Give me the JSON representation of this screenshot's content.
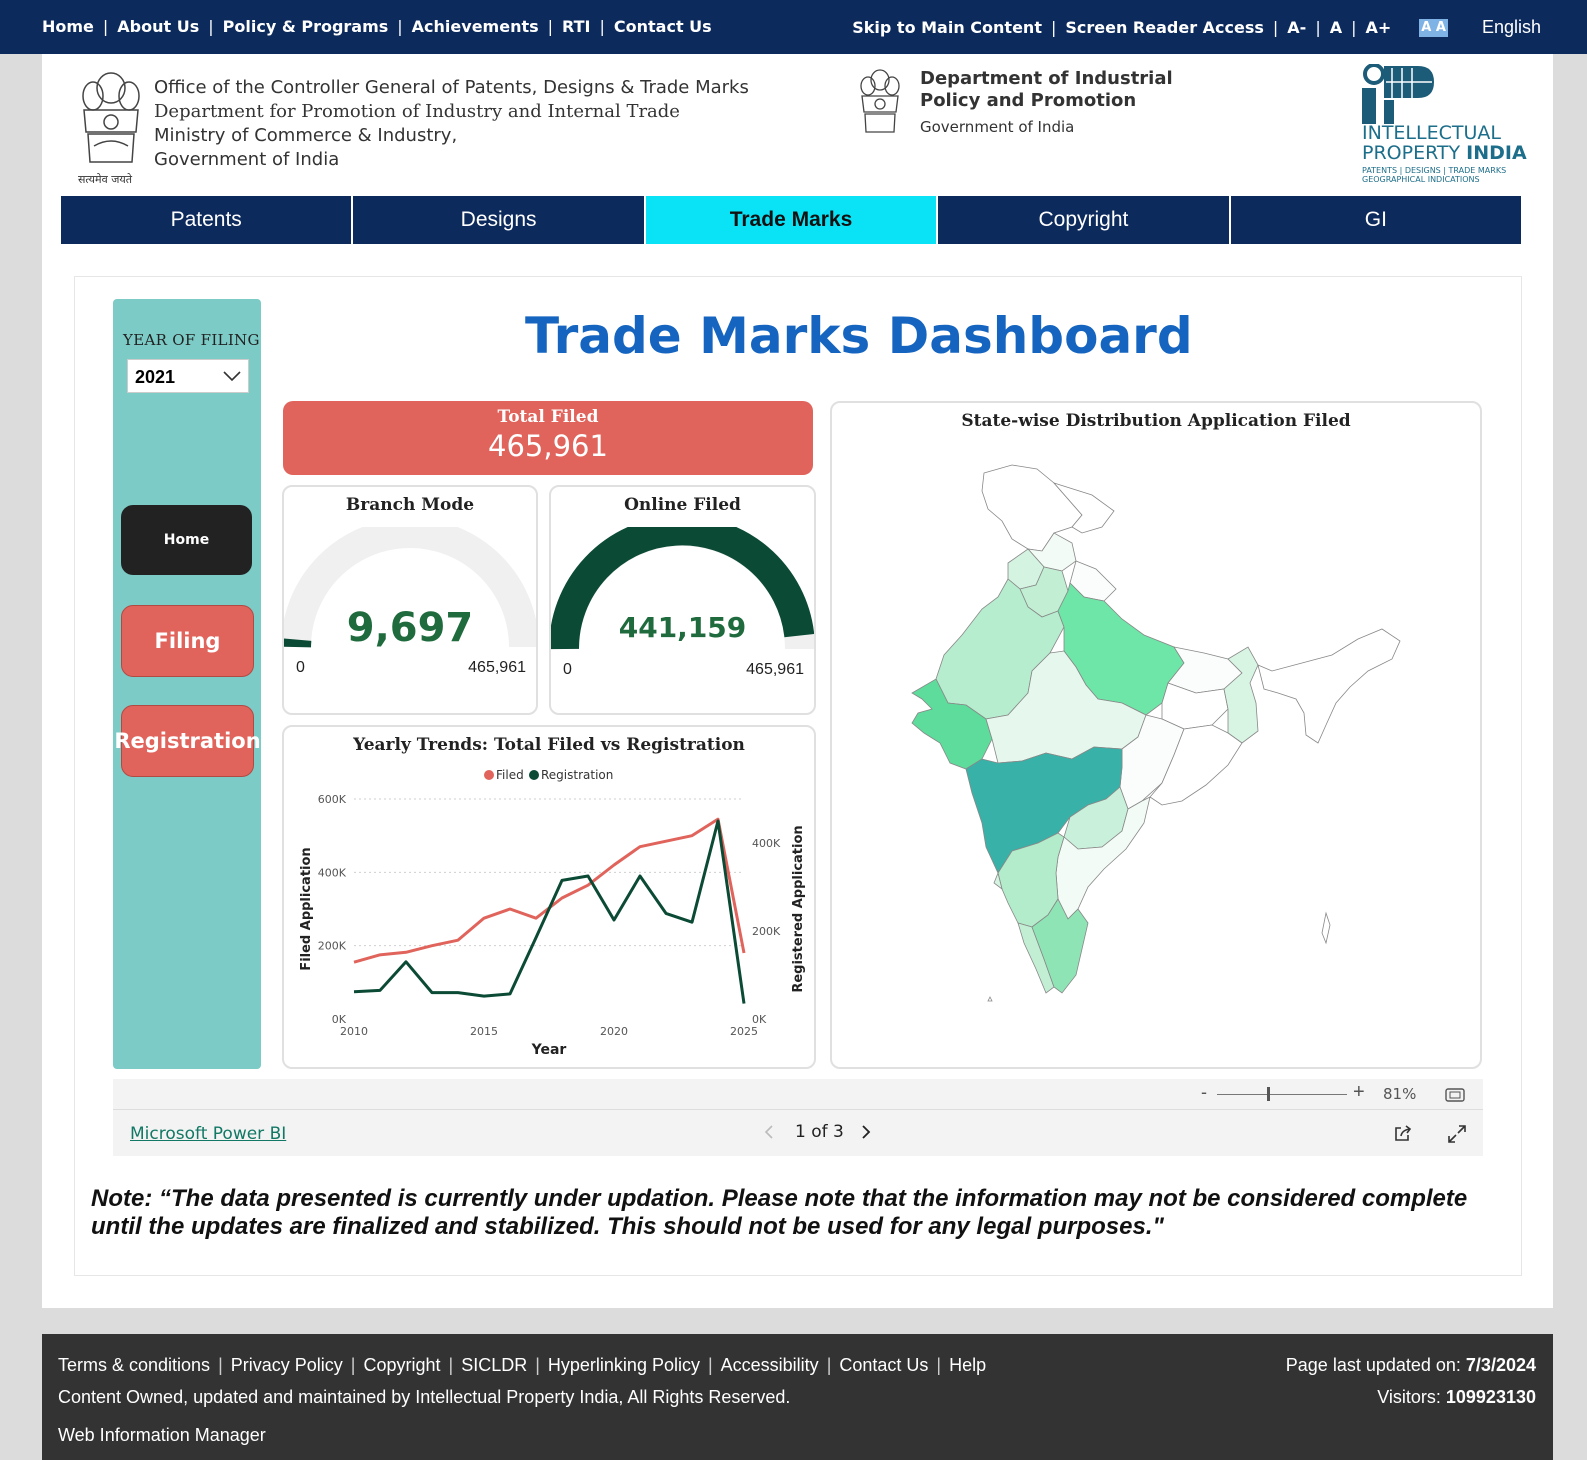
{
  "topbar": {
    "left_links": [
      "Home",
      "About Us",
      "Policy & Programs",
      "Achievements",
      "RTI",
      "Contact Us"
    ],
    "right_links": [
      "Skip to Main Content",
      "Screen Reader Access",
      "A-",
      "A",
      "A+"
    ],
    "contrast_label": "A A",
    "language": "English"
  },
  "header": {
    "org_lines": [
      "Office of the Controller General of Patents, Designs & Trade Marks",
      "Department for Promotion of Industry and Internal Trade",
      "Ministry of Commerce & Industry,",
      "Government of India"
    ],
    "emblem_caption": "सत्यमेव जयते",
    "dipp_title_1": "Department of Industrial",
    "dipp_title_2": "Policy and Promotion",
    "dipp_sub": "Government of India",
    "ipi_line1": "INTELLECTUAL",
    "ipi_line2a": "PROPERTY ",
    "ipi_line2b": "INDIA",
    "ipi_line3": "PATENTS | DESIGNS | TRADE MARKS GEOGRAPHICAL INDICATIONS"
  },
  "nav": {
    "tabs": [
      "Patents",
      "Designs",
      "Trade Marks",
      "Copyright",
      "GI"
    ],
    "active": "Trade Marks"
  },
  "dashboard": {
    "title": "Trade Marks Dashboard",
    "year_label": "YEAR OF FILING",
    "year_value": "2021",
    "buttons": {
      "home": "Home",
      "filing": "Filing",
      "registration": "Registration"
    },
    "total_filed_label": "Total Filed",
    "total_filed_value": "465,961",
    "branch_title": "Branch Mode",
    "branch_value": "9,697",
    "online_title": "Online Filed",
    "online_value": "441,159",
    "gauge_min": "0",
    "gauge_max": "465,961",
    "map_title": "State-wise Distribution Application Filed",
    "colors": {
      "accent_red": "#e0645c",
      "dark_green": "#0b4a34",
      "sidebar": "#7ccbc6",
      "title_blue": "#1565c0"
    }
  },
  "chart_data": {
    "type": "line",
    "title": "Yearly Trends: Total Filed vs Registration",
    "xlabel": "Year",
    "ylabel": "Filed Application",
    "y2label": "Registered Application",
    "x": [
      2010,
      2011,
      2012,
      2013,
      2014,
      2015,
      2016,
      2017,
      2018,
      2019,
      2020,
      2021,
      2022,
      2023,
      2024,
      2025
    ],
    "x_ticks": [
      "2010",
      "2015",
      "2020",
      "2025"
    ],
    "ylim": [
      0,
      600000
    ],
    "y_ticks": [
      "0K",
      "200K",
      "400K",
      "600K"
    ],
    "y2lim": [
      0,
      500000
    ],
    "y2_ticks": [
      "0K",
      "200K",
      "400K"
    ],
    "legend": "top-center",
    "series": [
      {
        "name": "Filed",
        "axis": "left",
        "color": "#e0645c",
        "values": [
          155000,
          175000,
          182000,
          200000,
          215000,
          275000,
          300000,
          275000,
          330000,
          365000,
          420000,
          470000,
          485000,
          500000,
          545000,
          180000
        ]
      },
      {
        "name": "Registration",
        "axis": "right",
        "color": "#0b4a34",
        "values": [
          62000,
          65000,
          130000,
          60000,
          60000,
          52000,
          57000,
          185000,
          315000,
          325000,
          225000,
          325000,
          240000,
          220000,
          450000,
          35000
        ]
      }
    ]
  },
  "powerbi": {
    "zoom": "81%",
    "link": "Microsoft Power BI",
    "pager": "1 of 3"
  },
  "note": "Note: “The data presented is currently under updation. Please note that the information may not be considered complete until the updates are finalized and stabilized. This should not be used for any legal purposes.\"",
  "footer": {
    "links": [
      "Terms & conditions",
      "Privacy Policy",
      "Copyright",
      "SICLDR",
      "Hyperlinking Policy",
      "Accessibility",
      "Contact Us",
      "Help"
    ],
    "owned": "Content Owned, updated and maintained by Intellectual Property India, All Rights Reserved.",
    "wim": "Web Information Manager",
    "updated_label": "Page last updated on: ",
    "updated_value": "7/3/2024",
    "visitors_label": "Visitors: ",
    "visitors_value": "109923130"
  }
}
